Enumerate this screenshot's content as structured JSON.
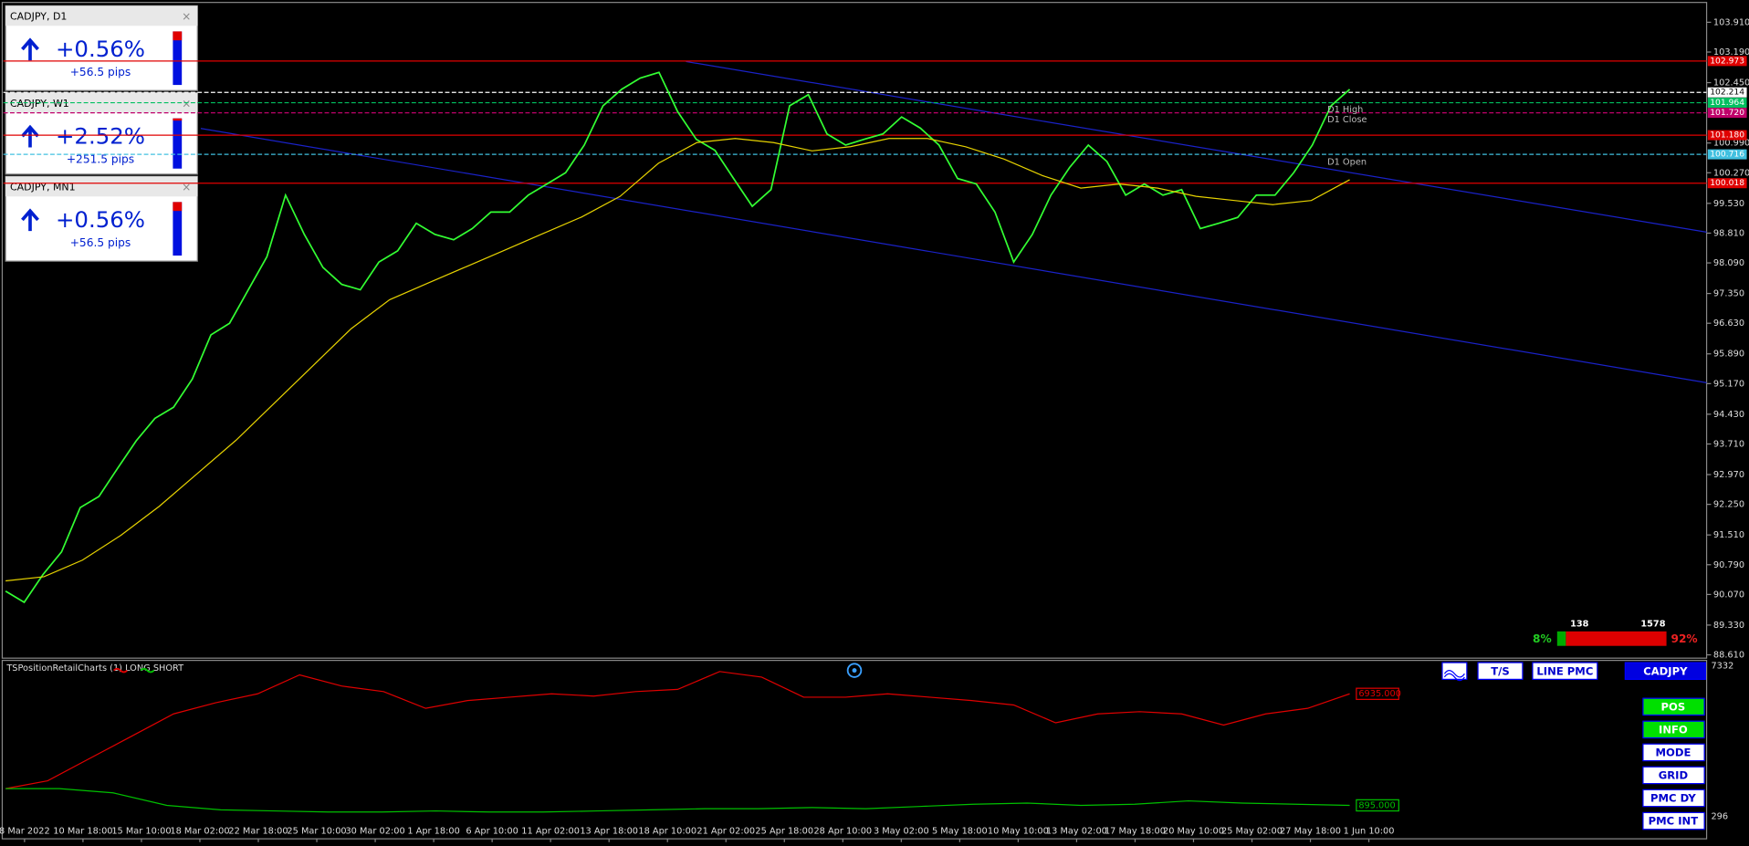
{
  "widgets": [
    {
      "title": "CADJPY, D1",
      "change": "+0.56%",
      "pips": "+56.5 pips"
    },
    {
      "title": "CADJPY, W1",
      "change": "+2.52%",
      "pips": "+251.5 pips"
    },
    {
      "title": "CADJPY, MN1",
      "change": "+0.56%",
      "pips": "+56.5 pips"
    }
  ],
  "main_chart": {
    "type": "line",
    "ylim": [
      88.53,
      104.39
    ],
    "yticks": [
      {
        "value": 103.91,
        "label": "103.910"
      },
      {
        "value": 103.19,
        "label": "103.190"
      },
      {
        "value": 102.45,
        "label": "102.450"
      },
      {
        "value": 100.99,
        "label": "100.990"
      },
      {
        "value": 100.27,
        "label": "100.270"
      },
      {
        "value": 99.53,
        "label": "99.530"
      },
      {
        "value": 98.81,
        "label": "98.810"
      },
      {
        "value": 98.09,
        "label": "98.090"
      },
      {
        "value": 97.35,
        "label": "97.350"
      },
      {
        "value": 96.63,
        "label": "96.630"
      },
      {
        "value": 95.89,
        "label": "95.890"
      },
      {
        "value": 95.17,
        "label": "95.170"
      },
      {
        "value": 94.43,
        "label": "94.430"
      },
      {
        "value": 93.71,
        "label": "93.710"
      },
      {
        "value": 92.97,
        "label": "92.970"
      },
      {
        "value": 92.25,
        "label": "92.250"
      },
      {
        "value": 91.51,
        "label": "91.510"
      },
      {
        "value": 90.79,
        "label": "90.790"
      },
      {
        "value": 90.07,
        "label": "90.070"
      },
      {
        "value": 89.33,
        "label": "89.330"
      },
      {
        "value": 88.61,
        "label": "88.610"
      }
    ],
    "levels": [
      {
        "value": 102.973,
        "label": "102.973",
        "color": "#e00000"
      },
      {
        "value": 102.214,
        "label": "102.214",
        "color": "#ffffff"
      },
      {
        "value": 101.964,
        "label": "101.964",
        "color": "#00c060"
      },
      {
        "value": 101.72,
        "label": "101.720",
        "color": "#c0006a"
      },
      {
        "value": 101.18,
        "label": "101.180",
        "color": "#e00000"
      },
      {
        "value": 100.716,
        "label": "100.716",
        "color": "#40c0e0"
      },
      {
        "value": 100.018,
        "label": "100.018",
        "color": "#e00000"
      }
    ],
    "series": [
      {
        "name": "price",
        "color": "#33ff33",
        "values": [
          90.15,
          89.88,
          90.55,
          91.1,
          92.17,
          92.44,
          93.12,
          93.79,
          94.33,
          94.6,
          95.28,
          96.35,
          96.63,
          97.44,
          98.24,
          99.73,
          98.78,
          97.98,
          97.57,
          97.44,
          98.11,
          98.38,
          99.05,
          98.78,
          98.65,
          98.92,
          99.32,
          99.32,
          99.73,
          100.0,
          100.27,
          100.94,
          101.89,
          102.29,
          102.56,
          102.7,
          101.75,
          101.08,
          100.81,
          100.13,
          99.46,
          99.86,
          101.89,
          102.16,
          101.21,
          100.94,
          101.08,
          101.21,
          101.62,
          101.35,
          100.94,
          100.13,
          100.0,
          99.32,
          98.11,
          98.78,
          99.73,
          100.4,
          100.94,
          100.54,
          99.73,
          100.0,
          99.73,
          99.86,
          98.92,
          99.05,
          99.19,
          99.73,
          99.73,
          100.27,
          100.94,
          101.89,
          102.29
        ]
      },
      {
        "name": "ma",
        "color": "#e6d200",
        "values": [
          90.4,
          90.5,
          90.9,
          91.5,
          92.2,
          93.0,
          93.8,
          94.7,
          95.6,
          96.5,
          97.2,
          97.6,
          98.0,
          98.4,
          98.8,
          99.2,
          99.7,
          100.5,
          101.0,
          101.1,
          101.0,
          100.8,
          100.9,
          101.1,
          101.1,
          100.9,
          100.6,
          100.2,
          99.9,
          100.0,
          99.9,
          99.7,
          99.6,
          99.5,
          99.6,
          100.1
        ]
      }
    ],
    "annotations": [
      "D1 High",
      "D1 Close",
      "D1 Open"
    ],
    "x_labels": [
      "8 Mar 2022",
      "10 Mar 18:00",
      "15 Mar 10:00",
      "18 Mar 02:00",
      "22 Mar 18:00",
      "25 Mar 10:00",
      "30 Mar 02:00",
      "1 Apr 18:00",
      "6 Apr 10:00",
      "11 Apr 02:00",
      "13 Apr 18:00",
      "18 Apr 10:00",
      "21 Apr 02:00",
      "25 Apr 18:00",
      "28 Apr 10:00",
      "3 May 02:00",
      "5 May 18:00",
      "10 May 10:00",
      "13 May 02:00",
      "17 May 18:00",
      "20 May 10:00",
      "25 May 02:00",
      "27 May 18:00",
      "1 Jun 10:00"
    ],
    "sentiment": {
      "long_count": "138",
      "short_count": "1578",
      "long": {
        "value": 8,
        "label": "8%"
      },
      "short": {
        "value": 92,
        "label": "92%"
      }
    }
  },
  "indicator": {
    "title": "TSPositionRetailCharts (1) LONG SHORT",
    "ylim": [
      296,
      7332
    ],
    "yticks": [
      7332,
      296
    ],
    "series": [
      {
        "name": "long",
        "color": "#e00000",
        "value_label": "6935.000",
        "values": [
          1599,
          1964,
          3006,
          4049,
          5091,
          5612,
          6029,
          6915,
          6394,
          6133,
          5352,
          5716,
          5873,
          6029,
          5925,
          6133,
          6237,
          7071,
          6811,
          5873,
          5873,
          6029,
          5873,
          5716,
          5508,
          4674,
          5091,
          5195,
          5091,
          4570,
          5091,
          5352,
          6029
        ]
      },
      {
        "name": "short",
        "color": "#00c000",
        "value_label": "895.000",
        "values": [
          1599,
          1599,
          1400,
          817,
          608,
          556,
          504,
          504,
          556,
          504,
          504,
          556,
          608,
          660,
          660,
          712,
          660,
          765,
          869,
          921,
          817,
          869,
          1026,
          921,
          869,
          817
        ]
      }
    ]
  },
  "buttons": {
    "top": [
      "T/S",
      "LINE PMC",
      "CADJPY"
    ],
    "side": [
      "POS",
      "INFO",
      "MODE",
      "GRID",
      "PMC DY",
      "PMC INT"
    ]
  }
}
